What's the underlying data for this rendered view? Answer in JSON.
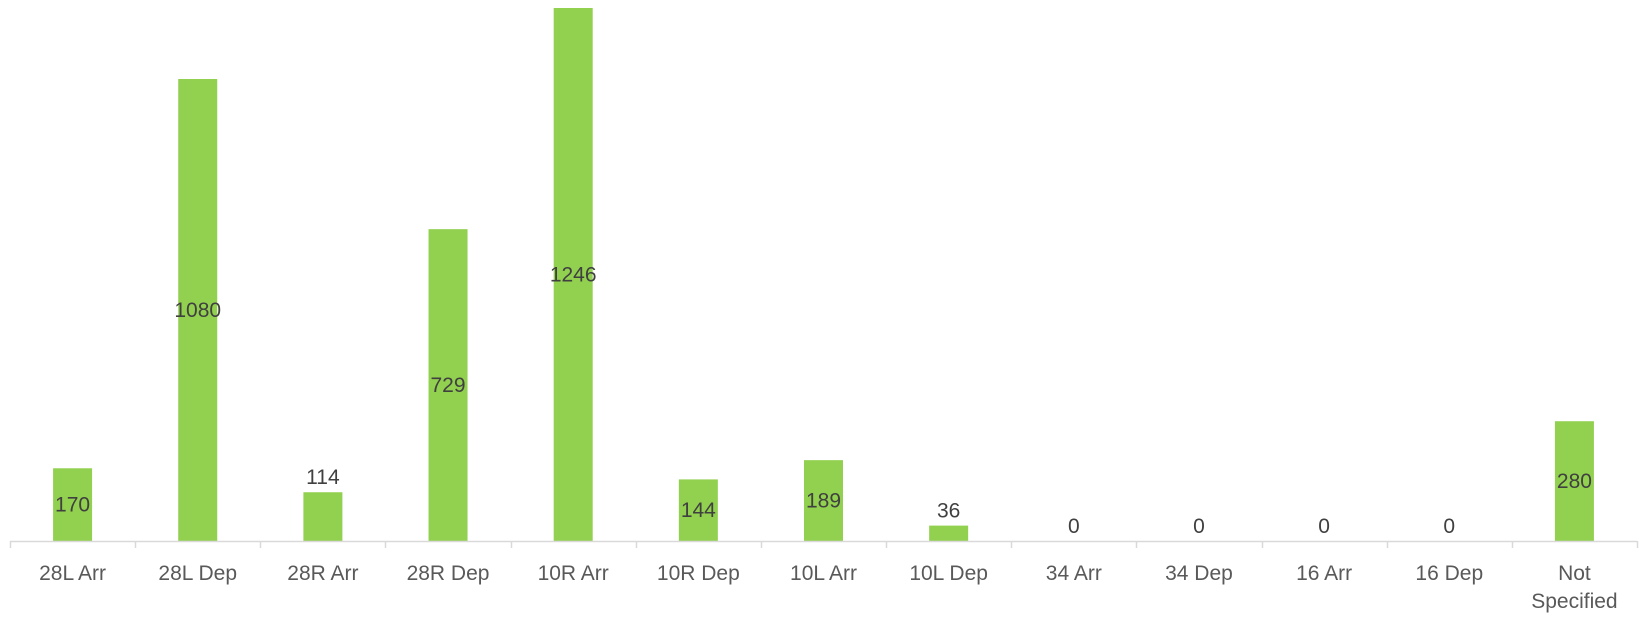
{
  "chart_data": {
    "type": "bar",
    "categories": [
      [
        "28L Arr"
      ],
      [
        "28L Dep"
      ],
      [
        "28R Arr"
      ],
      [
        "28R Dep"
      ],
      [
        "10R Arr"
      ],
      [
        "10R Dep"
      ],
      [
        "10L Arr"
      ],
      [
        "10L Dep"
      ],
      [
        "34 Arr"
      ],
      [
        "34 Dep"
      ],
      [
        "16 Arr"
      ],
      [
        "16 Dep"
      ],
      [
        "Not",
        "Specified"
      ]
    ],
    "values": [
      170,
      1080,
      114,
      729,
      1246,
      144,
      189,
      36,
      0,
      0,
      0,
      0,
      280
    ],
    "data_labels": [
      "170",
      "1080",
      "114",
      "729",
      "1246",
      "144",
      "189",
      "36",
      "0",
      "0",
      "0",
      "0",
      "280"
    ],
    "ylim": [
      0,
      1246
    ],
    "grid": false,
    "legend": "none",
    "colors": {
      "bar": "#92d050",
      "axis": "#d9d9d9",
      "label": "#404040",
      "tick_label": "#595959"
    }
  }
}
